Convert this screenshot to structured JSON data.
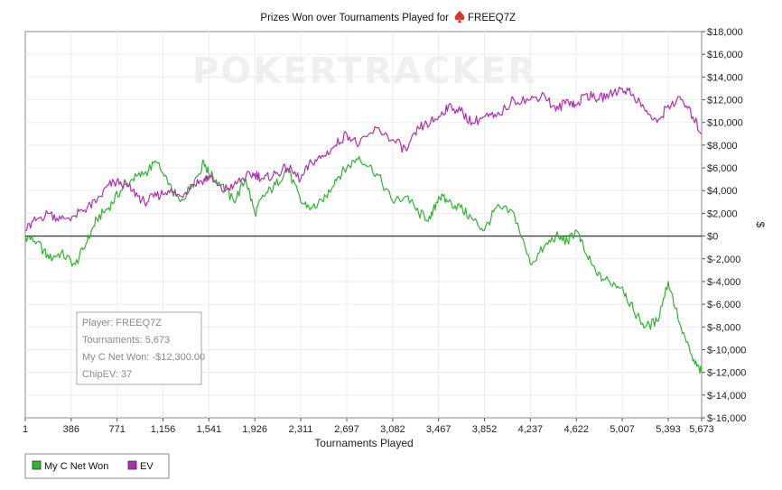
{
  "chart_data": {
    "type": "line",
    "title": "Prizes Won over Tournaments Played for",
    "player_name": "FREEQ7Z",
    "watermark": "POKERTRACKER",
    "xlabel": "Tournaments Played",
    "ylabel": "$",
    "xlim": [
      1,
      5673
    ],
    "ylim": [
      -16000,
      18000
    ],
    "x_ticks": [
      1,
      386,
      771,
      1156,
      1541,
      1926,
      2311,
      2697,
      3082,
      3467,
      3852,
      4237,
      4622,
      5007,
      5393,
      5673
    ],
    "x_tick_labels": [
      "1",
      "386",
      "771",
      "1,156",
      "1,541",
      "1,926",
      "2,311",
      "2,697",
      "3,082",
      "3,467",
      "3,852",
      "4,237",
      "4,622",
      "5,007",
      "5,393",
      "5,673"
    ],
    "y_ticks": [
      18000,
      16000,
      14000,
      12000,
      10000,
      8000,
      6000,
      4000,
      2000,
      0,
      -2000,
      -4000,
      -6000,
      -8000,
      -10000,
      -12000,
      -14000,
      -16000
    ],
    "y_tick_labels": [
      "$18,000",
      "$16,000",
      "$14,000",
      "$12,000",
      "$10,000",
      "$8,000",
      "$6,000",
      "$4,000",
      "$2,000",
      "$0",
      "$-2,000",
      "$-4,000",
      "$-6,000",
      "$-8,000",
      "$-10,000",
      "$-12,000",
      "$-14,000",
      "$-16,000"
    ],
    "grid": true,
    "legend_position": "bottom-left",
    "series": [
      {
        "name": "My C Net Won",
        "color": "#2db52d",
        "x": [
          1,
          100,
          200,
          300,
          420,
          520,
          600,
          700,
          800,
          900,
          1000,
          1100,
          1200,
          1300,
          1400,
          1500,
          1541,
          1650,
          1750,
          1850,
          1926,
          2000,
          2100,
          2200,
          2311,
          2400,
          2500,
          2600,
          2697,
          2800,
          2950,
          3082,
          3200,
          3300,
          3400,
          3467,
          3550,
          3650,
          3750,
          3852,
          3950,
          4100,
          4237,
          4350,
          4450,
          4550,
          4622,
          4700,
          4800,
          4900,
          5007,
          5100,
          5200,
          5300,
          5393,
          5500,
          5600,
          5673
        ],
        "y": [
          0,
          -500,
          -2000,
          -1500,
          -2500,
          -500,
          1500,
          2500,
          4000,
          5000,
          5500,
          6500,
          4500,
          3000,
          4500,
          6500,
          5500,
          4500,
          3000,
          5000,
          2000,
          3500,
          4500,
          6000,
          3000,
          2500,
          3000,
          5000,
          6000,
          7000,
          5500,
          3000,
          3500,
          2000,
          1500,
          3500,
          3000,
          2500,
          1500,
          500,
          2500,
          2000,
          -2500,
          -1000,
          0,
          -500,
          500,
          -1500,
          -3500,
          -4000,
          -4500,
          -6500,
          -8000,
          -7500,
          -4000,
          -8000,
          -11000,
          -12000
        ]
      },
      {
        "name": "EV",
        "color": "#b32db3",
        "x": [
          1,
          100,
          200,
          300,
          420,
          520,
          600,
          700,
          800,
          900,
          1000,
          1100,
          1200,
          1300,
          1400,
          1500,
          1541,
          1650,
          1750,
          1850,
          1926,
          2000,
          2100,
          2200,
          2311,
          2400,
          2500,
          2600,
          2697,
          2800,
          2950,
          3082,
          3200,
          3300,
          3400,
          3467,
          3550,
          3650,
          3750,
          3852,
          3950,
          4100,
          4237,
          4350,
          4450,
          4550,
          4622,
          4700,
          4800,
          4900,
          5007,
          5100,
          5200,
          5300,
          5393,
          5500,
          5600,
          5673
        ],
        "y": [
          500,
          1500,
          2000,
          1500,
          1800,
          2500,
          3000,
          4500,
          4800,
          4000,
          3000,
          3500,
          4000,
          3500,
          4500,
          5000,
          5200,
          4000,
          4500,
          5200,
          5500,
          5000,
          5500,
          6000,
          5000,
          6500,
          7000,
          8000,
          9000,
          8000,
          9500,
          8500,
          7500,
          9500,
          10000,
          10500,
          11500,
          11000,
          10000,
          10500,
          10500,
          12000,
          12000,
          12500,
          11000,
          12000,
          11500,
          12500,
          12000,
          12500,
          13000,
          12500,
          11000,
          10000,
          11500,
          12000,
          10500,
          9000
        ]
      }
    ]
  },
  "info_box": {
    "player_line": "Player: FREEQ7Z",
    "tournaments_line": "Tournaments: 5,673",
    "net_won_line": "My C Net Won: -$12,300.00",
    "chipev_line": "ChipEV: 37"
  },
  "legend": [
    {
      "label": "My C Net Won",
      "color": "#2db52d"
    },
    {
      "label": "EV",
      "color": "#b32db3"
    }
  ]
}
